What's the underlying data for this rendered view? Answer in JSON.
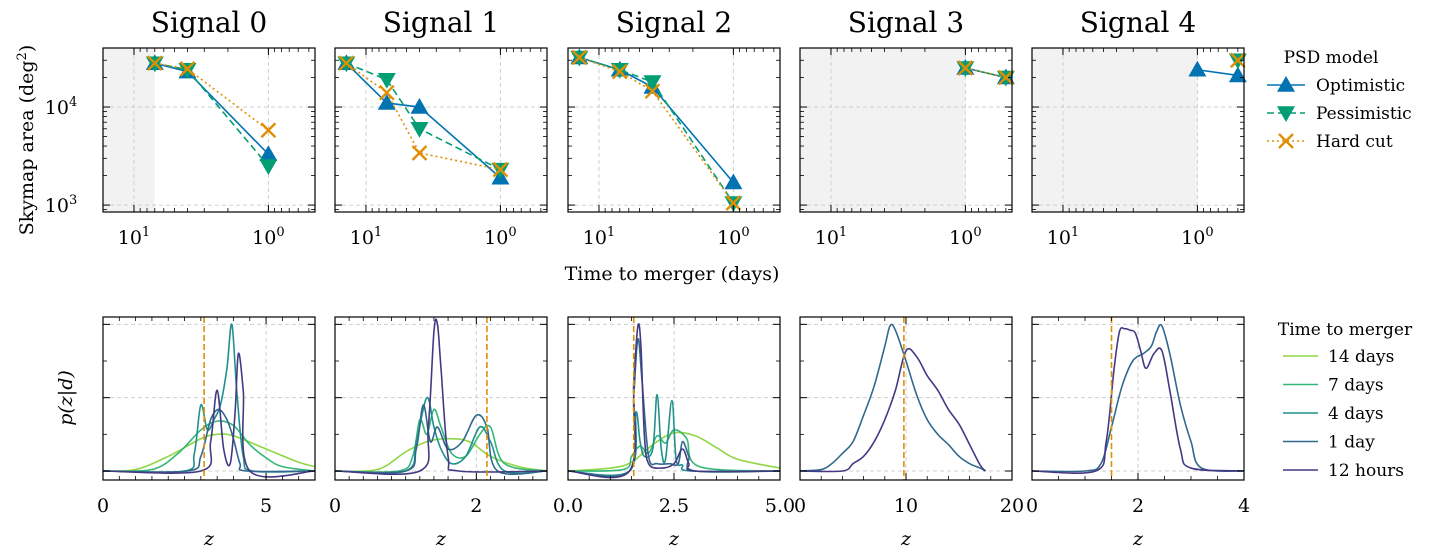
{
  "figure": {
    "top_xlabel": "Time to merger (days)",
    "top_ylabel": "Skymap area (deg²)",
    "bottom_ylabel": "p(z|d)",
    "bottom_xlabel": "z"
  },
  "legend_top": {
    "title": "PSD model",
    "entries": [
      {
        "label": "Optimistic",
        "color": "#0173b2",
        "marker": "triangle-up",
        "dash": "solid"
      },
      {
        "label": "Pessimistic",
        "color": "#029e73",
        "marker": "triangle-down",
        "dash": "dashed"
      },
      {
        "label": "Hard cut",
        "color": "#de8f05",
        "marker": "x",
        "dash": "dotted"
      }
    ]
  },
  "legend_bottom": {
    "title": "Time to merger",
    "entries": [
      {
        "label": "14 days",
        "color": "#8fd744"
      },
      {
        "label": "7 days",
        "color": "#35b779"
      },
      {
        "label": "4 days",
        "color": "#21918c"
      },
      {
        "label": "1 day",
        "color": "#31688e"
      },
      {
        "label": "12 hours",
        "color": "#443983"
      }
    ]
  },
  "chart_data": [
    {
      "type": "line",
      "title": "Signal 0",
      "xscale": "log-reversed",
      "yscale": "log",
      "xlim": [
        17,
        0.45
      ],
      "ylim": [
        850,
        40000
      ],
      "xticks": [
        10,
        1
      ],
      "xticklabels": [
        "10¹",
        "10⁰"
      ],
      "yticks": [
        1000,
        10000
      ],
      "yticklabels": [
        "10³",
        "10⁴"
      ],
      "shaded_x": [
        17,
        7
      ],
      "grid": true,
      "series": [
        {
          "name": "Optimistic",
          "x": [
            7,
            4,
            1
          ],
          "y": [
            28000,
            23000,
            3300
          ]
        },
        {
          "name": "Pessimistic",
          "x": [
            7,
            4,
            1
          ],
          "y": [
            28000,
            24000,
            2500
          ]
        },
        {
          "name": "Hard cut",
          "x": [
            7,
            4,
            1
          ],
          "y": [
            28000,
            24500,
            5800
          ]
        }
      ]
    },
    {
      "type": "line",
      "title": "Signal 1",
      "xscale": "log-reversed",
      "yscale": "log",
      "xlim": [
        17,
        0.45
      ],
      "ylim": [
        850,
        40000
      ],
      "xticks": [
        10,
        1
      ],
      "xticklabels": [
        "10¹",
        "10⁰"
      ],
      "yticks": [
        1000,
        10000
      ],
      "yticklabels": [
        "10³",
        "10⁴"
      ],
      "shaded_x": null,
      "grid": true,
      "series": [
        {
          "name": "Optimistic",
          "x": [
            14,
            7,
            4,
            1
          ],
          "y": [
            28000,
            11000,
            10000,
            1900
          ]
        },
        {
          "name": "Pessimistic",
          "x": [
            14,
            7,
            4,
            1
          ],
          "y": [
            28000,
            19000,
            6000,
            2300
          ]
        },
        {
          "name": "Hard cut",
          "x": [
            14,
            7,
            4,
            1
          ],
          "y": [
            28000,
            14000,
            3400,
            2300
          ]
        }
      ]
    },
    {
      "type": "line",
      "title": "Signal 2",
      "xscale": "log-reversed",
      "yscale": "log",
      "xlim": [
        17,
        0.45
      ],
      "ylim": [
        850,
        40000
      ],
      "xticks": [
        10,
        1
      ],
      "xticklabels": [
        "10¹",
        "10⁰"
      ],
      "yticks": [
        1000,
        10000
      ],
      "yticklabels": [
        "10³",
        "10⁴"
      ],
      "shaded_x": null,
      "grid": true,
      "series": [
        {
          "name": "Optimistic",
          "x": [
            14,
            7,
            4,
            1
          ],
          "y": [
            32000,
            24000,
            16000,
            1700
          ]
        },
        {
          "name": "Pessimistic",
          "x": [
            14,
            7,
            4,
            1
          ],
          "y": [
            32000,
            24000,
            18000,
            1050
          ]
        },
        {
          "name": "Hard cut",
          "x": [
            14,
            7,
            4,
            1
          ],
          "y": [
            32000,
            23000,
            14500,
            1050
          ]
        }
      ]
    },
    {
      "type": "line",
      "title": "Signal 3",
      "xscale": "log-reversed",
      "yscale": "log",
      "xlim": [
        17,
        0.45
      ],
      "ylim": [
        850,
        40000
      ],
      "xticks": [
        10,
        1
      ],
      "xticklabels": [
        "10¹",
        "10⁰"
      ],
      "yticks": [
        1000,
        10000
      ],
      "yticklabels": [
        "10³",
        "10⁴"
      ],
      "shaded_x": [
        17,
        1
      ],
      "grid": true,
      "series": [
        {
          "name": "Optimistic",
          "x": [
            1,
            0.5
          ],
          "y": [
            25000,
            20000
          ]
        },
        {
          "name": "Pessimistic",
          "x": [
            1,
            0.5
          ],
          "y": [
            25000,
            20000
          ]
        },
        {
          "name": "Hard cut",
          "x": [
            1,
            0.5
          ],
          "y": [
            25000,
            20000
          ]
        }
      ]
    },
    {
      "type": "line",
      "title": "Signal 4",
      "xscale": "log-reversed",
      "yscale": "log",
      "xlim": [
        17,
        0.45
      ],
      "ylim": [
        850,
        40000
      ],
      "xticks": [
        10,
        1
      ],
      "xticklabels": [
        "10¹",
        "10⁰"
      ],
      "yticks": [
        1000,
        10000
      ],
      "yticklabels": [
        "10³",
        "10⁴"
      ],
      "shaded_x": [
        17,
        1
      ],
      "grid": true,
      "series": [
        {
          "name": "Optimistic",
          "x": [
            1,
            0.5
          ],
          "y": [
            24000,
            21000
          ]
        },
        {
          "name": "Pessimistic",
          "x": [
            0.5
          ],
          "y": [
            30000
          ]
        },
        {
          "name": "Hard cut",
          "x": [
            0.5
          ],
          "y": [
            30000
          ]
        }
      ]
    },
    {
      "type": "line",
      "xlim": [
        0,
        6.5
      ],
      "xticks": [
        0,
        5
      ],
      "xticklabels": [
        "0",
        "5"
      ],
      "ylim": [
        0,
        1.05
      ],
      "vline": 3.1,
      "grid": true,
      "series": [
        {
          "name": "14 days",
          "x": [
            0,
            1,
            2,
            3,
            3.5,
            4,
            5,
            6,
            6.5
          ],
          "y": [
            0,
            0.01,
            0.1,
            0.22,
            0.25,
            0.24,
            0.15,
            0.06,
            0.03
          ]
        },
        {
          "name": "7 days",
          "x": [
            0,
            1.5,
            2.3,
            3,
            3.5,
            4,
            4.5,
            5,
            5.5,
            6.5
          ],
          "y": [
            0,
            0.01,
            0.12,
            0.28,
            0.34,
            0.31,
            0.18,
            0.09,
            0.03,
            0
          ]
        },
        {
          "name": "4 days",
          "x": [
            0,
            2.5,
            2.8,
            3.0,
            3.2,
            3.4,
            3.6,
            3.8,
            3.95,
            4.1,
            4.3,
            4.6,
            6.5
          ],
          "y": [
            0,
            0,
            0.12,
            0.45,
            0.28,
            0.35,
            0.45,
            0.7,
            1.0,
            0.55,
            0.1,
            0,
            0
          ]
        },
        {
          "name": "1 day",
          "x": [
            0,
            2.6,
            3.0,
            3.3,
            3.55,
            3.8,
            4.0,
            4.2,
            4.4,
            6.5
          ],
          "y": [
            0,
            0,
            0.1,
            0.35,
            0.42,
            0.35,
            0.22,
            0.05,
            0,
            0
          ]
        },
        {
          "name": "12 hours",
          "x": [
            0,
            3.0,
            3.3,
            3.5,
            3.7,
            3.9,
            4.05,
            4.15,
            4.3,
            4.5,
            6.5
          ],
          "y": [
            0,
            0,
            0.2,
            0.55,
            0.15,
            0.05,
            0.4,
            0.8,
            0.55,
            0,
            0
          ]
        }
      ]
    },
    {
      "type": "line",
      "xlim": [
        0,
        3
      ],
      "xticks": [
        0,
        2
      ],
      "xticklabels": [
        "0",
        "2"
      ],
      "ylim": [
        0,
        1.05
      ],
      "vline": 2.15,
      "grid": true,
      "series": [
        {
          "name": "14 days",
          "x": [
            0,
            0.6,
            1.0,
            1.3,
            1.6,
            1.9,
            2.2,
            2.6,
            3.0
          ],
          "y": [
            0,
            0.01,
            0.13,
            0.2,
            0.22,
            0.2,
            0.1,
            0.03,
            0
          ]
        },
        {
          "name": "7 days",
          "x": [
            0,
            0.9,
            1.1,
            1.2,
            1.3,
            1.4,
            1.5,
            1.65,
            1.85,
            2.05,
            2.2,
            2.4,
            3.0
          ],
          "y": [
            0,
            0,
            0.1,
            0.35,
            0.25,
            0.42,
            0.3,
            0.12,
            0.1,
            0.25,
            0.3,
            0.05,
            0
          ]
        },
        {
          "name": "4 days",
          "x": [
            0,
            1.0,
            1.15,
            1.3,
            1.4,
            1.5,
            1.65,
            1.85,
            2.05,
            2.2,
            2.4,
            3.0
          ],
          "y": [
            0,
            0,
            0.2,
            0.5,
            0.3,
            0.15,
            0.05,
            0.1,
            0.3,
            0.2,
            0,
            0
          ]
        },
        {
          "name": "1 day",
          "x": [
            0,
            1.0,
            1.15,
            1.25,
            1.35,
            1.45,
            1.6,
            1.8,
            2.0,
            2.15,
            2.3,
            3.0
          ],
          "y": [
            0,
            0,
            0.15,
            0.45,
            0.2,
            0.3,
            0.15,
            0.2,
            0.38,
            0.3,
            0,
            0
          ]
        },
        {
          "name": "12 hours",
          "x": [
            0,
            1.2,
            1.32,
            1.4,
            1.45,
            1.5,
            1.6,
            1.75,
            3.0
          ],
          "y": [
            0,
            0,
            0.3,
            0.95,
            1.0,
            0.7,
            0.1,
            0,
            0
          ]
        }
      ]
    },
    {
      "type": "line",
      "xlim": [
        0,
        5
      ],
      "xticks": [
        0,
        2.5,
        5
      ],
      "xticklabels": [
        "0.0",
        "2.5",
        "5.0"
      ],
      "ylim": [
        0,
        1.05
      ],
      "vline": 1.55,
      "grid": true,
      "series": [
        {
          "name": "14 days",
          "x": [
            0,
            1.0,
            1.5,
            2.0,
            2.5,
            3.0,
            3.5,
            4.0,
            5.0
          ],
          "y": [
            0,
            0.02,
            0.06,
            0.18,
            0.26,
            0.24,
            0.16,
            0.08,
            0.02
          ]
        },
        {
          "name": "7 days",
          "x": [
            0,
            1.3,
            1.5,
            1.7,
            1.9,
            2.1,
            2.3,
            2.5,
            2.8,
            3.1,
            5.0
          ],
          "y": [
            0,
            0.01,
            0.1,
            0.17,
            0.12,
            0.24,
            0.19,
            0.28,
            0.22,
            0.03,
            0
          ]
        },
        {
          "name": "4 days",
          "x": [
            0,
            1.45,
            1.6,
            1.7,
            1.8,
            2.0,
            2.1,
            2.2,
            2.3,
            2.45,
            2.55,
            2.7,
            2.9,
            5.0
          ],
          "y": [
            0,
            0,
            0.4,
            0.2,
            0.1,
            0.15,
            0.52,
            0.15,
            0.08,
            0.48,
            0.08,
            0.04,
            0,
            0
          ]
        },
        {
          "name": "1 day",
          "x": [
            0,
            1.45,
            1.55,
            1.65,
            1.75,
            1.9,
            2.1,
            2.4,
            2.6,
            2.7,
            2.85,
            3.0,
            5.0
          ],
          "y": [
            0,
            0,
            0.5,
            0.9,
            0.6,
            0.1,
            0.05,
            0.05,
            0.05,
            0.2,
            0.1,
            0,
            0
          ]
        },
        {
          "name": "12 hours",
          "x": [
            0,
            1.45,
            1.55,
            1.65,
            1.72,
            1.8,
            1.9,
            2.2,
            2.5,
            2.7,
            2.85,
            3.0,
            5.0
          ],
          "y": [
            0,
            0,
            0.6,
            0.99,
            0.85,
            0.25,
            0.05,
            0.02,
            0.05,
            0.15,
            0.05,
            0,
            0
          ]
        }
      ]
    },
    {
      "type": "line",
      "xlim": [
        0,
        20
      ],
      "xticks": [
        0,
        10,
        20
      ],
      "xticklabels": [
        "0",
        "10",
        "20"
      ],
      "ylim": [
        0,
        1.05
      ],
      "vline": 9.8,
      "grid": true,
      "series": [
        {
          "name": "1 day",
          "x": [
            0,
            2,
            3,
            4,
            5,
            6,
            7,
            8,
            8.5,
            9,
            10,
            11,
            12,
            13,
            14,
            15,
            16,
            17,
            17.5
          ],
          "y": [
            0,
            0.01,
            0.05,
            0.12,
            0.2,
            0.38,
            0.58,
            0.85,
            0.99,
            0.96,
            0.75,
            0.52,
            0.35,
            0.25,
            0.18,
            0.1,
            0.05,
            0.02,
            0
          ]
        },
        {
          "name": "12 hours",
          "x": [
            0,
            4,
            5,
            6,
            7,
            8,
            9,
            10,
            11,
            12,
            13,
            14,
            15,
            16,
            17,
            17.5
          ],
          "y": [
            0,
            0,
            0.05,
            0.1,
            0.2,
            0.35,
            0.55,
            0.82,
            0.78,
            0.65,
            0.55,
            0.42,
            0.32,
            0.18,
            0.04,
            0
          ]
        }
      ]
    },
    {
      "type": "line",
      "xlim": [
        0,
        4
      ],
      "xticks": [
        0,
        2,
        4
      ],
      "xticklabels": [
        "0",
        "2",
        "4"
      ],
      "ylim": [
        0,
        1.05
      ],
      "vline": 1.5,
      "grid": true,
      "series": [
        {
          "name": "1 day",
          "x": [
            0,
            1.0,
            1.3,
            1.5,
            1.7,
            1.9,
            2.1,
            2.25,
            2.35,
            2.45,
            2.6,
            2.8,
            3.0,
            3.2,
            4.0
          ],
          "y": [
            0,
            0,
            0.05,
            0.3,
            0.58,
            0.75,
            0.8,
            0.85,
            0.95,
            0.99,
            0.8,
            0.45,
            0.2,
            0.02,
            0
          ]
        },
        {
          "name": "12 hours",
          "x": [
            0,
            1.2,
            1.4,
            1.55,
            1.65,
            1.75,
            1.85,
            1.95,
            2.05,
            2.15,
            2.3,
            2.45,
            2.6,
            2.8,
            3.0,
            4.0
          ],
          "y": [
            0,
            0,
            0.2,
            0.7,
            0.95,
            0.97,
            0.96,
            0.94,
            0.82,
            0.7,
            0.8,
            0.82,
            0.55,
            0.15,
            0.02,
            0
          ]
        }
      ]
    }
  ]
}
